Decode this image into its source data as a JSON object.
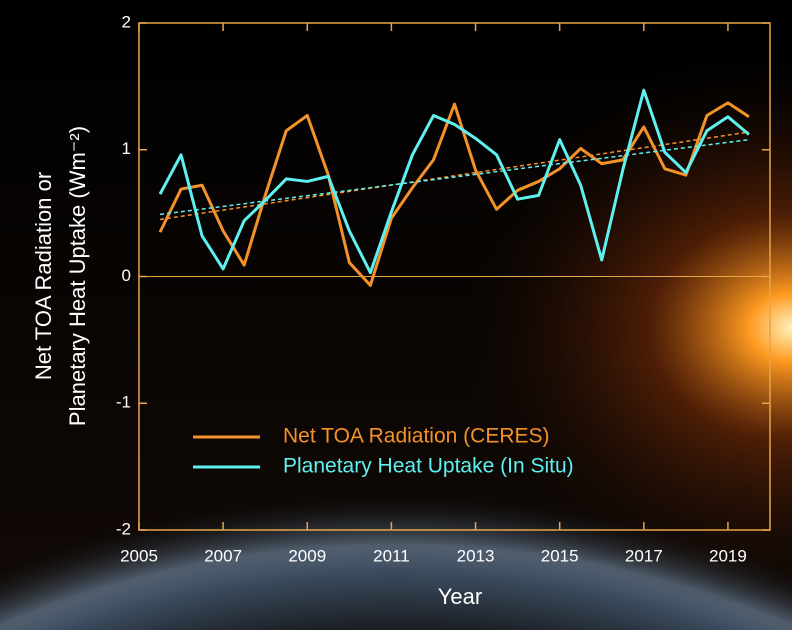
{
  "chart_data": {
    "type": "line",
    "xlabel": "Year",
    "ylabel": [
      "Net TOA Radiation or",
      "Planetary Heat Uptake (Wm⁻²)"
    ],
    "xlim": [
      2005,
      2020
    ],
    "ylim": [
      -2,
      2
    ],
    "xticks": [
      2005,
      2007,
      2009,
      2011,
      2013,
      2015,
      2017,
      2019
    ],
    "yticks": [
      -2,
      -1,
      0,
      1,
      2
    ],
    "axis_color": "#e8a448",
    "legend": "lower left",
    "x": [
      2005.5,
      2006,
      2006.5,
      2007,
      2007.5,
      2008,
      2008.5,
      2009,
      2009.5,
      2010,
      2010.5,
      2011,
      2011.5,
      2012,
      2012.5,
      2013,
      2013.5,
      2014,
      2014.5,
      2015,
      2015.5,
      2016,
      2016.5,
      2017,
      2017.5,
      2018,
      2018.5,
      2019,
      2019.5
    ],
    "trend_x": [
      2005.5,
      2019.5
    ],
    "series": [
      {
        "name": "Net TOA Radiation (CERES)",
        "color": "#f4922a",
        "values": [
          0.35,
          0.69,
          0.72,
          0.36,
          0.09,
          0.64,
          1.15,
          1.27,
          0.8,
          0.11,
          -0.07,
          0.46,
          0.7,
          0.92,
          1.36,
          0.84,
          0.53,
          0.68,
          0.75,
          0.85,
          1.01,
          0.89,
          0.92,
          1.18,
          0.85,
          0.8,
          1.27,
          1.37,
          1.26
        ],
        "trend": [
          0.45,
          1.14
        ]
      },
      {
        "name": "Planetary Heat Uptake (In Situ)",
        "color": "#5ff0f0",
        "values": [
          0.65,
          0.96,
          0.32,
          0.06,
          0.44,
          0.6,
          0.77,
          0.75,
          0.79,
          0.36,
          0.03,
          0.51,
          0.96,
          1.27,
          1.2,
          1.09,
          0.96,
          0.61,
          0.64,
          1.08,
          0.72,
          0.13,
          0.84,
          1.47,
          0.98,
          0.82,
          1.15,
          1.26,
          1.12
        ],
        "trend": [
          0.49,
          1.08
        ]
      }
    ]
  }
}
